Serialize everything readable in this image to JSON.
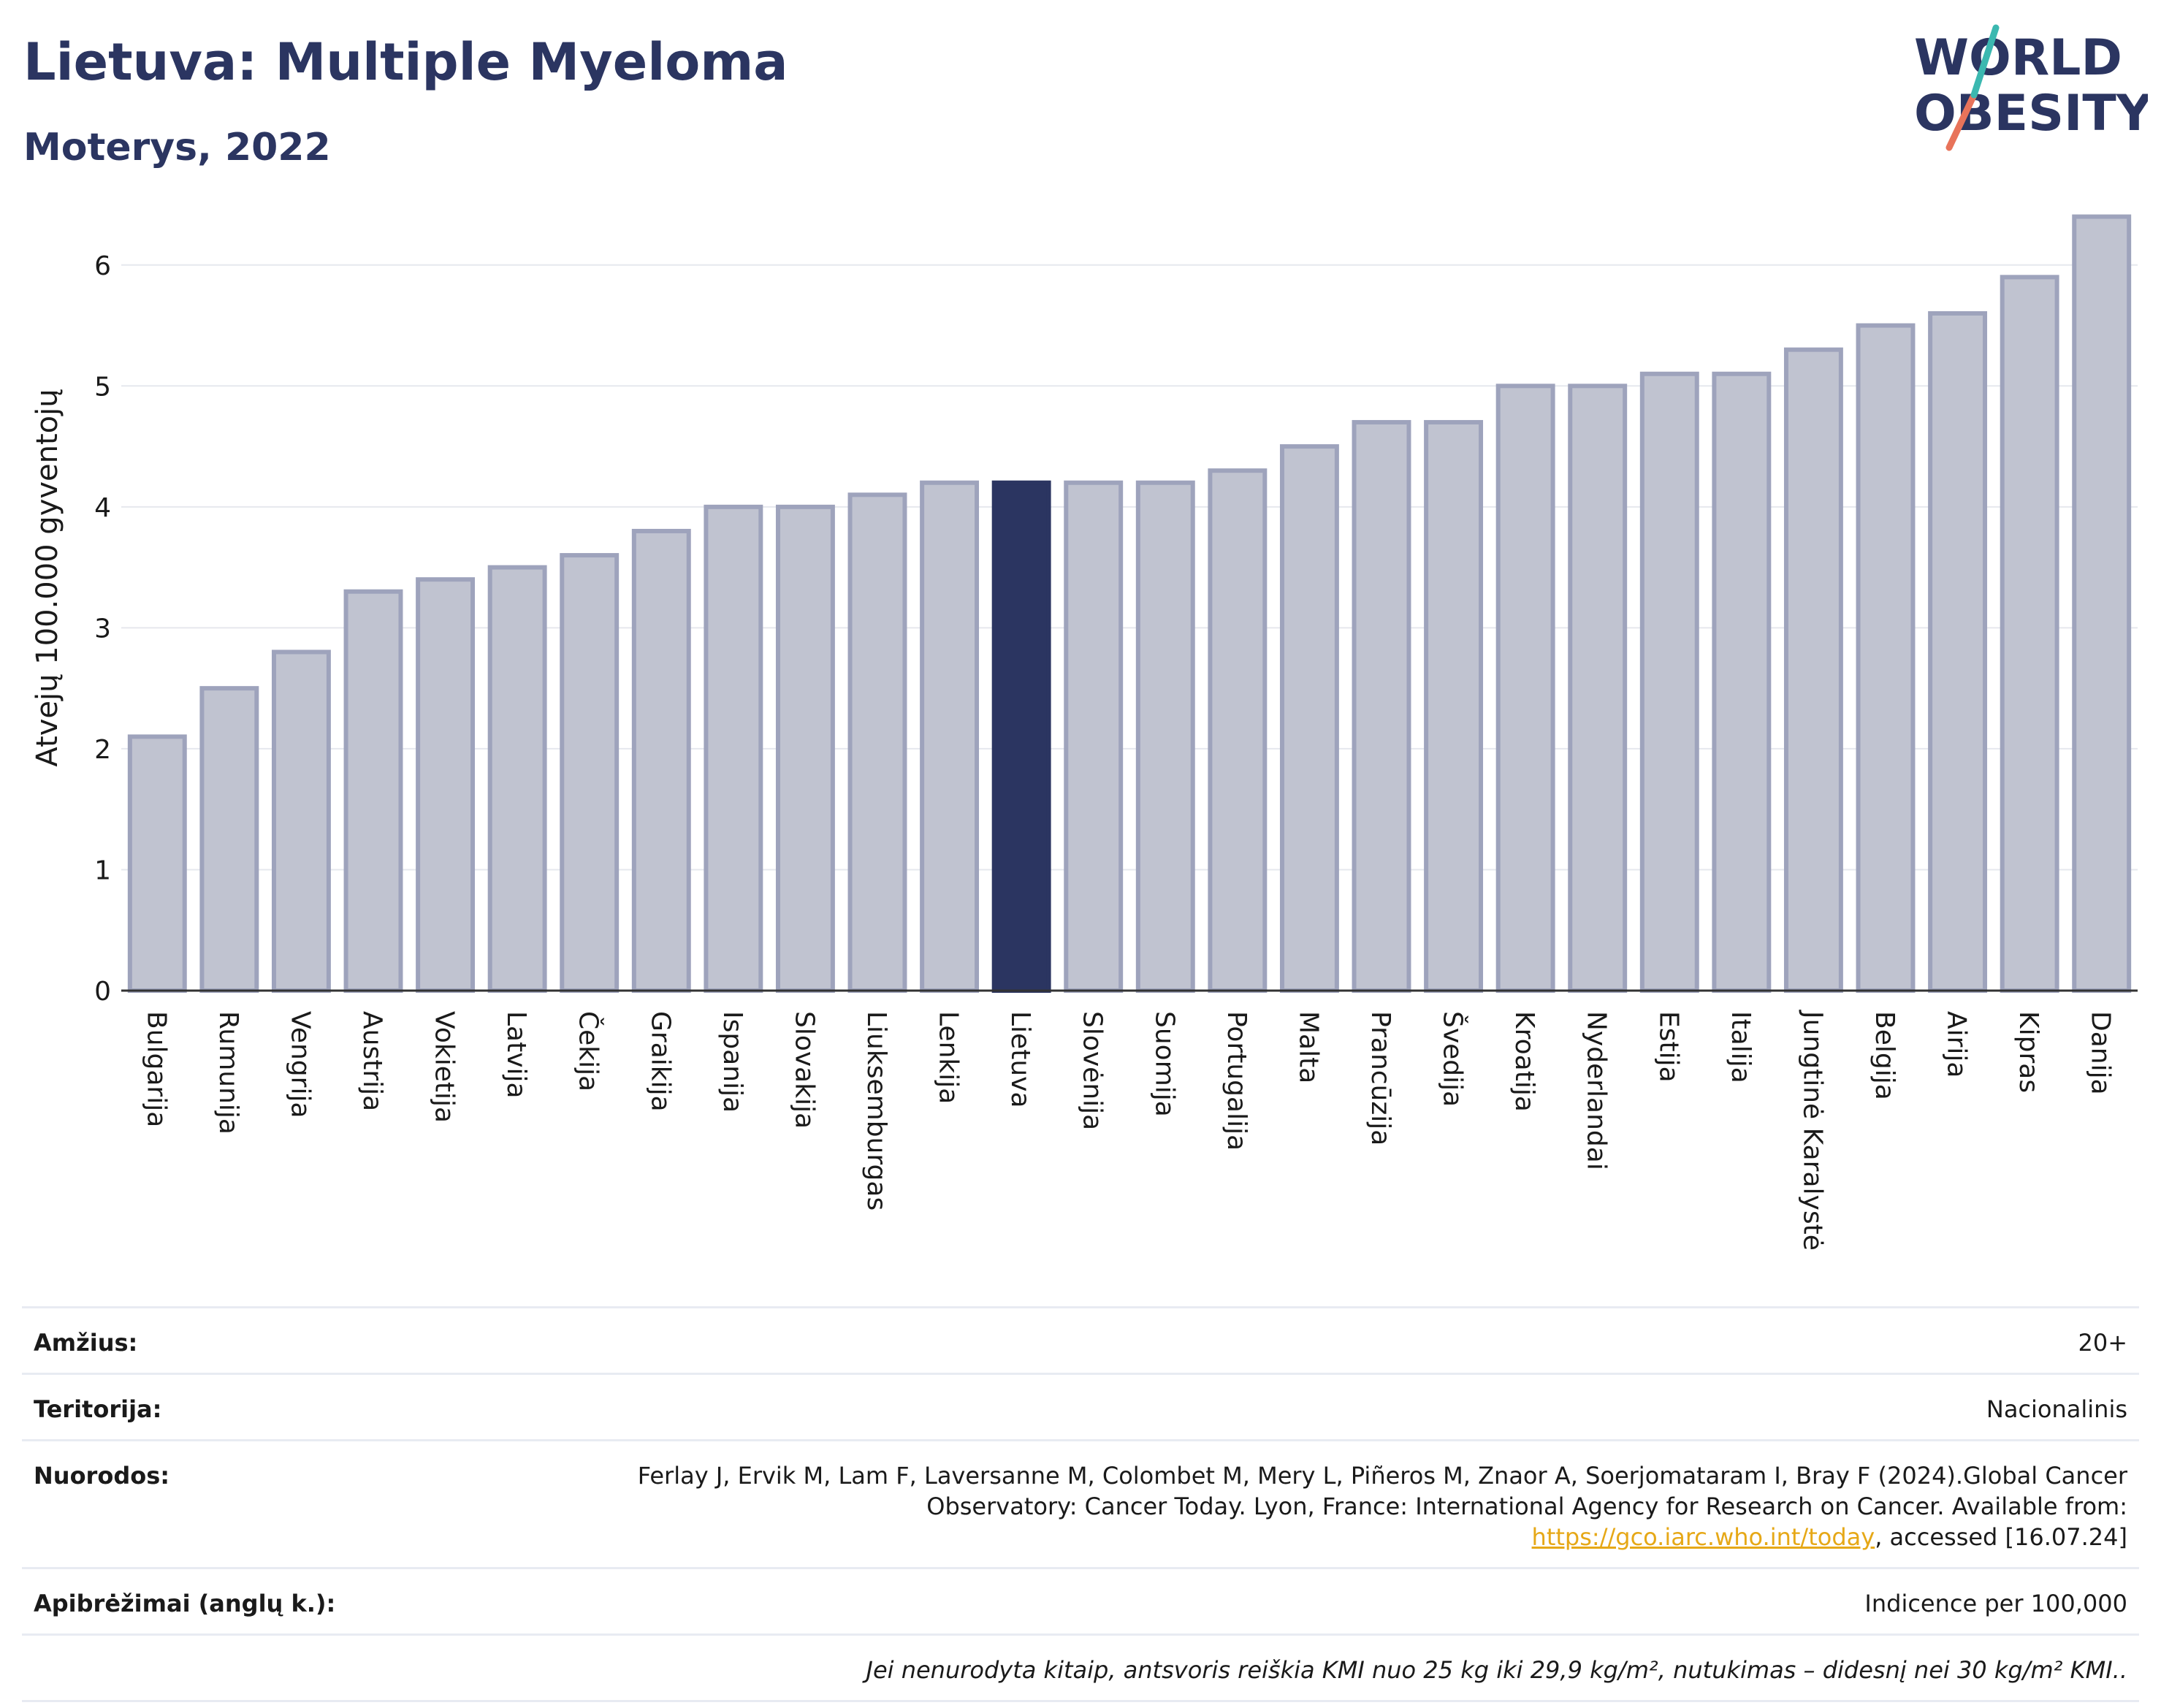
{
  "header": {
    "title": "Lietuva: Multiple Myeloma",
    "subtitle": "Moterys, 2022"
  },
  "logo": {
    "line1": "WORLD",
    "line2": "OBESITY",
    "icon": "world-obesity-logo"
  },
  "colors": {
    "title": "#2b3561",
    "bar": "#c0c3d0",
    "bar_stroke": "#9ea3bc",
    "highlight": "#2b3561",
    "link": "#e6a817"
  },
  "chart_data": {
    "type": "bar",
    "ylabel": "Atvejų 100.000 gyventojų",
    "xlabel": "",
    "ylim": [
      0,
      6.5
    ],
    "yticks": [
      0,
      1,
      2,
      3,
      4,
      5,
      6
    ],
    "grid": true,
    "highlight": "Lietuva",
    "categories": [
      "Bulgarija",
      "Rumunija",
      "Vengrija",
      "Austrija",
      "Vokietija",
      "Latvija",
      "Čekija",
      "Graikija",
      "Ispanija",
      "Slovakija",
      "Liuksemburgas",
      "Lenkija",
      "Lietuva",
      "Slovėnija",
      "Suomija",
      "Portugalija",
      "Malta",
      "Prancūzija",
      "Švedija",
      "Kroatija",
      "Nyderlandai",
      "Estija",
      "Italija",
      "Jungtinė Karalystė",
      "Belgija",
      "Airija",
      "Kipras",
      "Danija"
    ],
    "values": [
      2.1,
      2.5,
      2.8,
      3.3,
      3.4,
      3.5,
      3.6,
      3.8,
      4.0,
      4.0,
      4.1,
      4.2,
      4.2,
      4.2,
      4.2,
      4.3,
      4.5,
      4.7,
      4.7,
      5.0,
      5.0,
      5.1,
      5.1,
      5.3,
      5.5,
      5.6,
      5.9,
      6.4
    ]
  },
  "info": {
    "age_label": "Amžius:",
    "age_value": "20+",
    "territory_label": "Teritorija:",
    "territory_value": "Nacionalinis",
    "refs_label": "Nuorodos:",
    "refs_text_1": "Ferlay J, Ervik M, Lam F, Laversanne M, Colombet M, Mery L, Piñeros M, Znaor A, Soerjomataram I, Bray F (2024).Global Cancer Observatory: Cancer Today. Lyon, France: International Agency for Research on Cancer. Available from: ",
    "refs_link": "https://gco.iarc.who.int/today",
    "refs_text_2": ", accessed [16.07.24]",
    "definitions_label": "Apibrėžimai (anglų k.):",
    "definitions_value": "Indicence per 100,000",
    "note": "Jei nenurodyta kitaip, antsvoris reiškia KMI nuo 25 kg iki 29,9 kg/m², nutukimas – didesnį nei 30 kg/m² KMI.."
  }
}
